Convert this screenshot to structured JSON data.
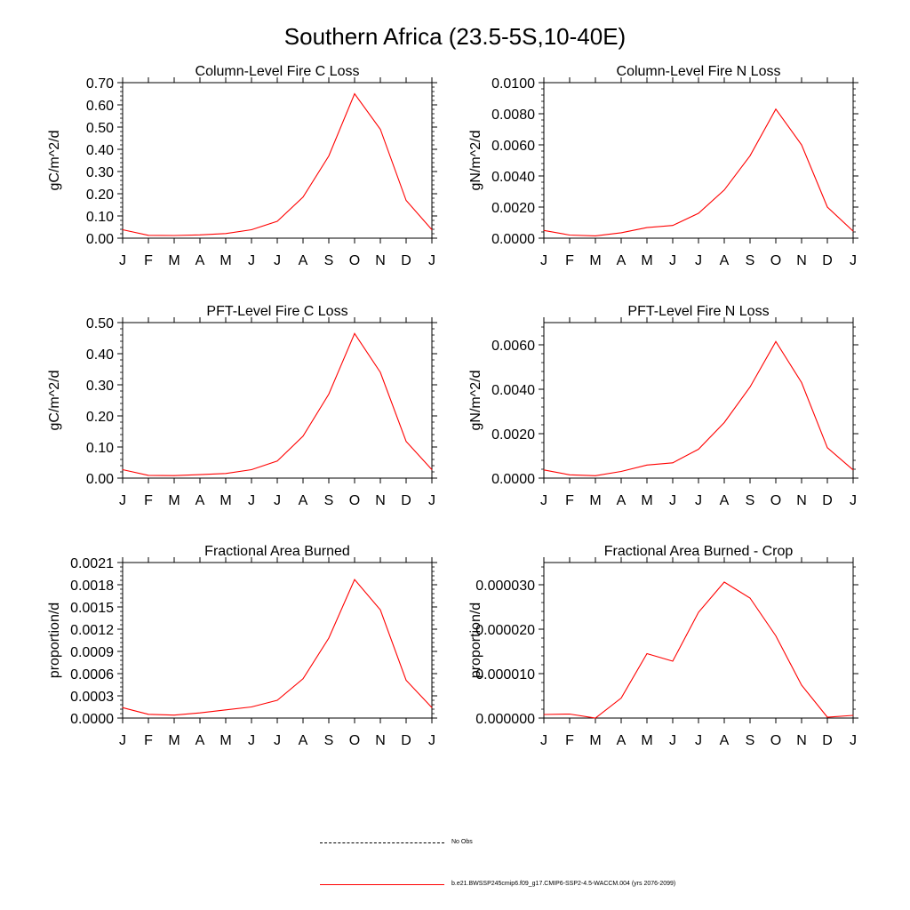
{
  "figure": {
    "title": "Southern Africa (23.5-5S,10-40E)"
  },
  "legend": {
    "entries": [
      {
        "label": "No Obs",
        "color": "#000000",
        "style": "dashed"
      },
      {
        "label": "b.e21.BWSSP245cmip6.f09_g17.CMIP6-SSP2-4.5-WACCM.004 (yrs 2076-2099)",
        "color": "#ff0000",
        "style": "solid"
      }
    ]
  },
  "chart_data": [
    {
      "type": "line",
      "title": "Column-Level Fire C Loss",
      "ylabel": "gC/m^2/d",
      "xlabel": "",
      "categories": [
        "J",
        "F",
        "M",
        "A",
        "M",
        "J",
        "J",
        "A",
        "S",
        "O",
        "N",
        "D",
        "J"
      ],
      "ylim": [
        0,
        0.7
      ],
      "yticks": [
        "0.00",
        "0.10",
        "0.20",
        "0.30",
        "0.40",
        "0.50",
        "0.60",
        "0.70"
      ],
      "ytick_values": [
        0,
        0.1,
        0.2,
        0.3,
        0.4,
        0.5,
        0.6,
        0.7
      ],
      "series": [
        {
          "color": "#ff0000",
          "values": [
            0.038,
            0.013,
            0.012,
            0.015,
            0.021,
            0.038,
            0.076,
            0.185,
            0.37,
            0.65,
            0.49,
            0.17,
            0.038
          ]
        }
      ]
    },
    {
      "type": "line",
      "title": "Column-Level Fire N Loss",
      "ylabel": "gN/m^2/d",
      "xlabel": "",
      "categories": [
        "J",
        "F",
        "M",
        "A",
        "M",
        "J",
        "J",
        "A",
        "S",
        "O",
        "N",
        "D",
        "J"
      ],
      "ylim": [
        0,
        0.01
      ],
      "yticks": [
        "0.0000",
        "0.0020",
        "0.0040",
        "0.0060",
        "0.0080",
        "0.0100"
      ],
      "ytick_values": [
        0,
        0.002,
        0.004,
        0.006,
        0.008,
        0.01
      ],
      "series": [
        {
          "color": "#ff0000",
          "values": [
            0.0005,
            0.0002,
            0.00015,
            0.00035,
            0.00068,
            0.00082,
            0.0016,
            0.0031,
            0.0053,
            0.0083,
            0.006,
            0.002,
            0.00045
          ]
        }
      ]
    },
    {
      "type": "line",
      "title": "PFT-Level Fire C Loss",
      "ylabel": "gC/m^2/d",
      "xlabel": "",
      "categories": [
        "J",
        "F",
        "M",
        "A",
        "M",
        "J",
        "J",
        "A",
        "S",
        "O",
        "N",
        "D",
        "J"
      ],
      "ylim": [
        0,
        0.5
      ],
      "yticks": [
        "0.00",
        "0.10",
        "0.20",
        "0.30",
        "0.40",
        "0.50"
      ],
      "ytick_values": [
        0,
        0.1,
        0.2,
        0.3,
        0.4,
        0.5
      ],
      "series": [
        {
          "color": "#ff0000",
          "values": [
            0.027,
            0.009,
            0.008,
            0.011,
            0.015,
            0.027,
            0.055,
            0.135,
            0.27,
            0.465,
            0.34,
            0.118,
            0.027
          ]
        }
      ]
    },
    {
      "type": "line",
      "title": "PFT-Level Fire N Loss",
      "ylabel": "gN/m^2/d",
      "xlabel": "",
      "categories": [
        "J",
        "F",
        "M",
        "A",
        "M",
        "J",
        "J",
        "A",
        "S",
        "O",
        "N",
        "D",
        "J"
      ],
      "ylim": [
        0,
        0.007
      ],
      "yticks": [
        "0.0000",
        "0.0020",
        "0.0040",
        "0.0060"
      ],
      "ytick_values": [
        0,
        0.002,
        0.004,
        0.006
      ],
      "series": [
        {
          "color": "#ff0000",
          "values": [
            0.00037,
            0.00015,
            0.00011,
            0.0003,
            0.00059,
            0.00069,
            0.0013,
            0.0025,
            0.0041,
            0.00615,
            0.0043,
            0.00137,
            0.00037
          ]
        }
      ]
    },
    {
      "type": "line",
      "title": "Fractional Area Burned",
      "ylabel": "proportion/d",
      "xlabel": "",
      "categories": [
        "J",
        "F",
        "M",
        "A",
        "M",
        "J",
        "J",
        "A",
        "S",
        "O",
        "N",
        "D",
        "J"
      ],
      "ylim": [
        0,
        0.0021
      ],
      "yticks": [
        "0.0000",
        "0.0003",
        "0.0006",
        "0.0009",
        "0.0012",
        "0.0015",
        "0.0018",
        "0.0021"
      ],
      "ytick_values": [
        0,
        0.0003,
        0.0006,
        0.0009,
        0.0012,
        0.0015,
        0.0018,
        0.0021
      ],
      "series": [
        {
          "color": "#ff0000",
          "values": [
            0.00014,
            5e-05,
            4e-05,
            7e-05,
            0.00011,
            0.00015,
            0.00024,
            0.00053,
            0.00108,
            0.00187,
            0.00146,
            0.00051,
            0.00014
          ]
        }
      ]
    },
    {
      "type": "line",
      "title": "Fractional Area Burned - Crop",
      "ylabel": "proportion/d",
      "xlabel": "",
      "categories": [
        "J",
        "F",
        "M",
        "A",
        "M",
        "J",
        "J",
        "A",
        "S",
        "O",
        "N",
        "D",
        "J"
      ],
      "ylim": [
        0,
        3.5e-05
      ],
      "yticks": [
        "0.000000",
        "0.000010",
        "0.000020",
        "0.000030"
      ],
      "ytick_values": [
        0,
        1e-05,
        2e-05,
        3e-05
      ],
      "series": [
        {
          "color": "#ff0000",
          "values": [
            8e-07,
            9e-07,
            0.0,
            4.5e-06,
            1.45e-05,
            1.28e-05,
            2.38e-05,
            3.06e-05,
            2.7e-05,
            1.85e-05,
            7.4e-06,
            2e-07,
            6e-07
          ]
        }
      ]
    }
  ]
}
